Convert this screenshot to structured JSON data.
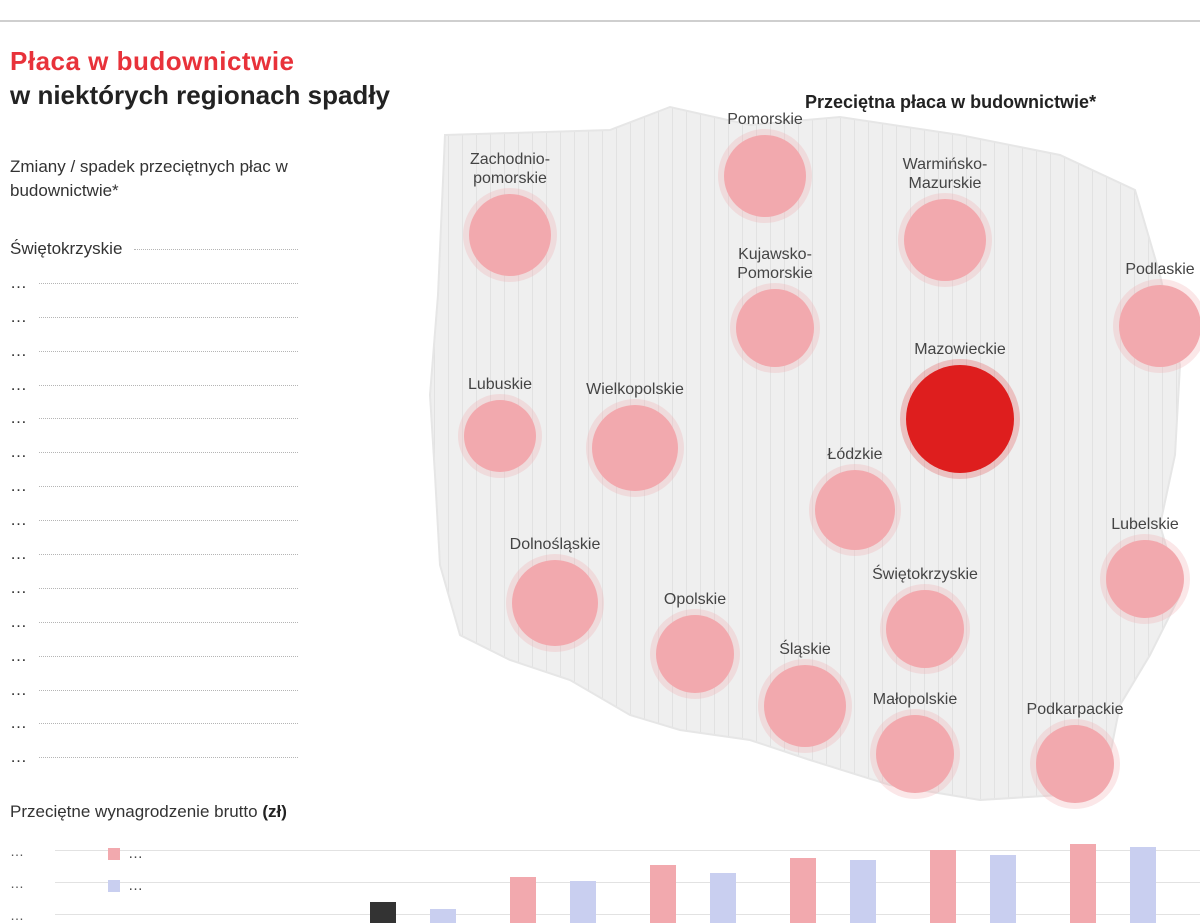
{
  "headline": {
    "line1": "Płaca w budownictwie",
    "line2": "w niektórych regionach spadły",
    "line1_color": "#e8323a"
  },
  "ranking": {
    "caption": "Zmiany / spadek przeciętnych płac w budownictwie*",
    "rows": [
      {
        "name": "Świętokrzyskie",
        "value": "",
        "color": "#4a6fe0"
      },
      {
        "name": "…",
        "value": "",
        "color": "#4a6fe0"
      },
      {
        "name": "…",
        "value": "",
        "color": "#4a6fe0"
      },
      {
        "name": "…",
        "value": "",
        "color": "#4a6fe0"
      },
      {
        "name": "…",
        "value": "",
        "color": "#4a6fe0"
      },
      {
        "name": "…",
        "value": "",
        "color": "#4a6fe0"
      },
      {
        "name": "…",
        "value": "",
        "color": "#4a6fe0"
      },
      {
        "name": "…",
        "value": "",
        "color": "#4a6fe0"
      },
      {
        "name": "…",
        "value": "",
        "color": "#4a6fe0"
      },
      {
        "name": "…",
        "value": "",
        "color": "#4a6fe0"
      },
      {
        "name": "…",
        "value": "",
        "color": "#d81e1e"
      },
      {
        "name": "…",
        "value": "",
        "color": "#d81e1e"
      },
      {
        "name": "…",
        "value": "",
        "color": "#d81e1e"
      },
      {
        "name": "…",
        "value": "",
        "color": "#d81e1e"
      },
      {
        "name": "…",
        "value": "",
        "color": "#d81e1e"
      },
      {
        "name": "…",
        "value": "",
        "color": "#d81e1e"
      }
    ]
  },
  "map": {
    "title": "Przeciętna płaca w budownictwie*",
    "bubble_color": "#f2a9ae",
    "highlight_color": "#de1e1e",
    "regions": [
      {
        "name": "Pomorskie",
        "value": ""
      },
      {
        "name": "Zachodnio-\npomorskie",
        "value": ""
      },
      {
        "name": "Warmińsko-\nMazurskie",
        "value": ""
      },
      {
        "name": "Kujawsko-\nPomorskie",
        "value": ""
      },
      {
        "name": "Podlaskie",
        "value": ""
      },
      {
        "name": "Mazowieckie",
        "value": "",
        "highlight": true
      },
      {
        "name": "Lubuskie",
        "value": ""
      },
      {
        "name": "Wielkopolskie",
        "value": ""
      },
      {
        "name": "Łódzkie",
        "value": ""
      },
      {
        "name": "Dolnośląskie",
        "value": ""
      },
      {
        "name": "Lubelskie",
        "value": ""
      },
      {
        "name": "Świętokrzyskie",
        "value": ""
      },
      {
        "name": "Opolskie",
        "value": ""
      },
      {
        "name": "Śląskie",
        "value": ""
      },
      {
        "name": "Małopolskie",
        "value": ""
      },
      {
        "name": "Podkarpackie",
        "value": ""
      }
    ]
  },
  "bottom_chart": {
    "caption": "Przeciętne wynagrodzenie brutto",
    "unit": "(zł)",
    "axis_labels": [
      "…",
      "…",
      "…"
    ],
    "legend": [
      {
        "label": "…",
        "color": "#f2a9ae"
      },
      {
        "label": "…",
        "color": "#c9cff0"
      }
    ],
    "colors": {
      "a": "#f2a9ae",
      "b": "#c9cff0",
      "dark": "#333333"
    },
    "groups": [
      {
        "a": 0.25,
        "b": 0.17,
        "labels": [
          "",
          ""
        ],
        "dark": true
      },
      {
        "a": 0.55,
        "b": 0.5,
        "labels": [
          "",
          ""
        ]
      },
      {
        "a": 0.7,
        "b": 0.6,
        "labels": [
          "",
          ""
        ]
      },
      {
        "a": 0.78,
        "b": 0.76,
        "labels": [
          "",
          ""
        ]
      },
      {
        "a": 0.88,
        "b": 0.82,
        "labels": [
          "",
          ""
        ]
      },
      {
        "a": 0.95,
        "b": 0.92,
        "labels": [
          "",
          ""
        ]
      }
    ]
  }
}
